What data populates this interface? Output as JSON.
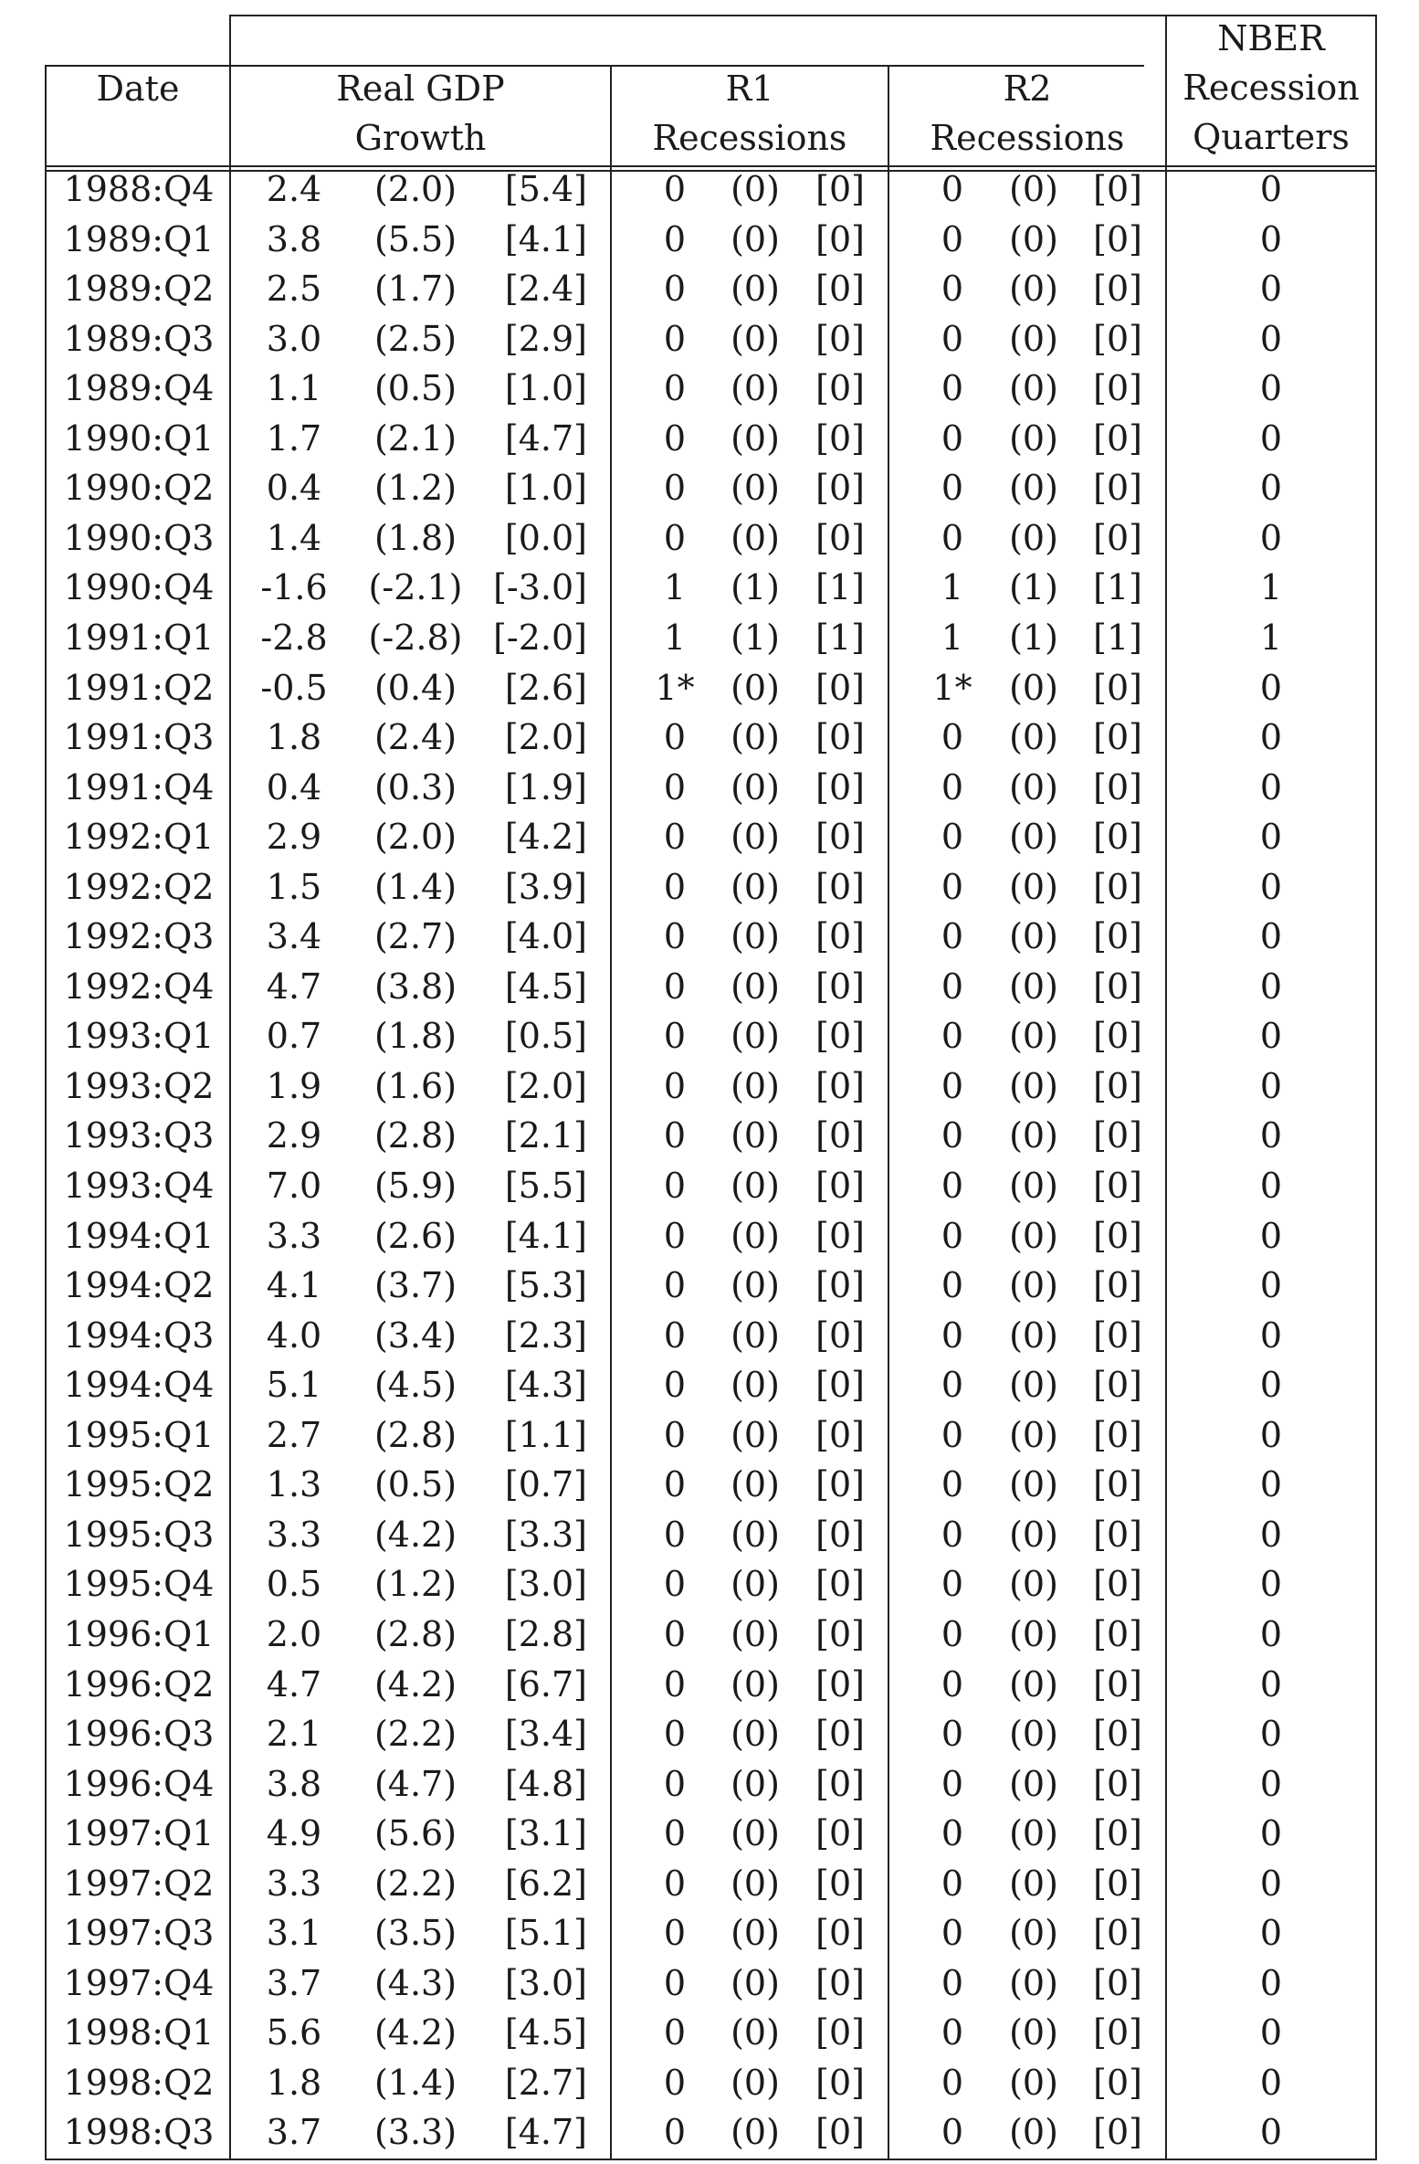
{
  "headers": {
    "date": "Date",
    "gdp": [
      "Real GDP",
      "Growth"
    ],
    "r1": [
      "R1",
      "Recessions"
    ],
    "r2": [
      "R2",
      "Recessions"
    ],
    "nber": [
      "NBER",
      "Recession",
      "Quarters"
    ]
  },
  "rows": [
    [
      "1988:Q4",
      "2.4",
      "(2.0)",
      "[5.4]",
      "0",
      "(0)",
      "[0]",
      "0",
      "(0)",
      "[0]",
      "0"
    ],
    [
      "1989:Q1",
      "3.8",
      "(5.5)",
      "[4.1]",
      "0",
      "(0)",
      "[0]",
      "0",
      "(0)",
      "[0]",
      "0"
    ],
    [
      "1989:Q2",
      "2.5",
      "(1.7)",
      "[2.4]",
      "0",
      "(0)",
      "[0]",
      "0",
      "(0)",
      "[0]",
      "0"
    ],
    [
      "1989:Q3",
      "3.0",
      "(2.5)",
      "[2.9]",
      "0",
      "(0)",
      "[0]",
      "0",
      "(0)",
      "[0]",
      "0"
    ],
    [
      "1989:Q4",
      "1.1",
      "(0.5)",
      "[1.0]",
      "0",
      "(0)",
      "[0]",
      "0",
      "(0)",
      "[0]",
      "0"
    ],
    [
      "1990:Q1",
      "1.7",
      "(2.1)",
      "[4.7]",
      "0",
      "(0)",
      "[0]",
      "0",
      "(0)",
      "[0]",
      "0"
    ],
    [
      "1990:Q2",
      "0.4",
      "(1.2)",
      "[1.0]",
      "0",
      "(0)",
      "[0]",
      "0",
      "(0)",
      "[0]",
      "0"
    ],
    [
      "1990:Q3",
      "1.4",
      "(1.8)",
      "[0.0]",
      "0",
      "(0)",
      "[0]",
      "0",
      "(0)",
      "[0]",
      "0"
    ],
    [
      "1990:Q4",
      "-1.6",
      "(-2.1)",
      "[-3.0]",
      "1",
      "(1)",
      "[1]",
      "1",
      "(1)",
      "[1]",
      "1"
    ],
    [
      "1991:Q1",
      "-2.8",
      "(-2.8)",
      "[-2.0]",
      "1",
      "(1)",
      "[1]",
      "1",
      "(1)",
      "[1]",
      "1"
    ],
    [
      "1991:Q2",
      "-0.5",
      "(0.4)",
      "[2.6]",
      "1*",
      "(0)",
      "[0]",
      "1*",
      "(0)",
      "[0]",
      "0"
    ],
    [
      "1991:Q3",
      "1.8",
      "(2.4)",
      "[2.0]",
      "0",
      "(0)",
      "[0]",
      "0",
      "(0)",
      "[0]",
      "0"
    ],
    [
      "1991:Q4",
      "0.4",
      "(0.3)",
      "[1.9]",
      "0",
      "(0)",
      "[0]",
      "0",
      "(0)",
      "[0]",
      "0"
    ],
    [
      "1992:Q1",
      "2.9",
      "(2.0)",
      "[4.2]",
      "0",
      "(0)",
      "[0]",
      "0",
      "(0)",
      "[0]",
      "0"
    ],
    [
      "1992:Q2",
      "1.5",
      "(1.4)",
      "[3.9]",
      "0",
      "(0)",
      "[0]",
      "0",
      "(0)",
      "[0]",
      "0"
    ],
    [
      "1992:Q3",
      "3.4",
      "(2.7)",
      "[4.0]",
      "0",
      "(0)",
      "[0]",
      "0",
      "(0)",
      "[0]",
      "0"
    ],
    [
      "1992:Q4",
      "4.7",
      "(3.8)",
      "[4.5]",
      "0",
      "(0)",
      "[0]",
      "0",
      "(0)",
      "[0]",
      "0"
    ],
    [
      "1993:Q1",
      "0.7",
      "(1.8)",
      "[0.5]",
      "0",
      "(0)",
      "[0]",
      "0",
      "(0)",
      "[0]",
      "0"
    ],
    [
      "1993:Q2",
      "1.9",
      "(1.6)",
      "[2.0]",
      "0",
      "(0)",
      "[0]",
      "0",
      "(0)",
      "[0]",
      "0"
    ],
    [
      "1993:Q3",
      "2.9",
      "(2.8)",
      "[2.1]",
      "0",
      "(0)",
      "[0]",
      "0",
      "(0)",
      "[0]",
      "0"
    ],
    [
      "1993:Q4",
      "7.0",
      "(5.9)",
      "[5.5]",
      "0",
      "(0)",
      "[0]",
      "0",
      "(0)",
      "[0]",
      "0"
    ],
    [
      "1994:Q1",
      "3.3",
      "(2.6)",
      "[4.1]",
      "0",
      "(0)",
      "[0]",
      "0",
      "(0)",
      "[0]",
      "0"
    ],
    [
      "1994:Q2",
      "4.1",
      "(3.7)",
      "[5.3]",
      "0",
      "(0)",
      "[0]",
      "0",
      "(0)",
      "[0]",
      "0"
    ],
    [
      "1994:Q3",
      "4.0",
      "(3.4)",
      "[2.3]",
      "0",
      "(0)",
      "[0]",
      "0",
      "(0)",
      "[0]",
      "0"
    ],
    [
      "1994:Q4",
      "5.1",
      "(4.5)",
      "[4.3]",
      "0",
      "(0)",
      "[0]",
      "0",
      "(0)",
      "[0]",
      "0"
    ],
    [
      "1995:Q1",
      "2.7",
      "(2.8)",
      "[1.1]",
      "0",
      "(0)",
      "[0]",
      "0",
      "(0)",
      "[0]",
      "0"
    ],
    [
      "1995:Q2",
      "1.3",
      "(0.5)",
      "[0.7]",
      "0",
      "(0)",
      "[0]",
      "0",
      "(0)",
      "[0]",
      "0"
    ],
    [
      "1995:Q3",
      "3.3",
      "(4.2)",
      "[3.3]",
      "0",
      "(0)",
      "[0]",
      "0",
      "(0)",
      "[0]",
      "0"
    ],
    [
      "1995:Q4",
      "0.5",
      "(1.2)",
      "[3.0]",
      "0",
      "(0)",
      "[0]",
      "0",
      "(0)",
      "[0]",
      "0"
    ],
    [
      "1996:Q1",
      "2.0",
      "(2.8)",
      "[2.8]",
      "0",
      "(0)",
      "[0]",
      "0",
      "(0)",
      "[0]",
      "0"
    ],
    [
      "1996:Q2",
      "4.7",
      "(4.2)",
      "[6.7]",
      "0",
      "(0)",
      "[0]",
      "0",
      "(0)",
      "[0]",
      "0"
    ],
    [
      "1996:Q3",
      "2.1",
      "(2.2)",
      "[3.4]",
      "0",
      "(0)",
      "[0]",
      "0",
      "(0)",
      "[0]",
      "0"
    ],
    [
      "1996:Q4",
      "3.8",
      "(4.7)",
      "[4.8]",
      "0",
      "(0)",
      "[0]",
      "0",
      "(0)",
      "[0]",
      "0"
    ],
    [
      "1997:Q1",
      "4.9",
      "(5.6)",
      "[3.1]",
      "0",
      "(0)",
      "[0]",
      "0",
      "(0)",
      "[0]",
      "0"
    ],
    [
      "1997:Q2",
      "3.3",
      "(2.2)",
      "[6.2]",
      "0",
      "(0)",
      "[0]",
      "0",
      "(0)",
      "[0]",
      "0"
    ],
    [
      "1997:Q3",
      "3.1",
      "(3.5)",
      "[5.1]",
      "0",
      "(0)",
      "[0]",
      "0",
      "(0)",
      "[0]",
      "0"
    ],
    [
      "1997:Q4",
      "3.7",
      "(4.3)",
      "[3.0]",
      "0",
      "(0)",
      "[0]",
      "0",
      "(0)",
      "[0]",
      "0"
    ],
    [
      "1998:Q1",
      "5.6",
      "(4.2)",
      "[4.5]",
      "0",
      "(0)",
      "[0]",
      "0",
      "(0)",
      "[0]",
      "0"
    ],
    [
      "1998:Q2",
      "1.8",
      "(1.4)",
      "[2.7]",
      "0",
      "(0)",
      "[0]",
      "0",
      "(0)",
      "[0]",
      "0"
    ],
    [
      "1998:Q3",
      "3.7",
      "(3.3)",
      "[4.7]",
      "0",
      "(0)",
      "[0]",
      "0",
      "(0)",
      "[0]",
      "0"
    ]
  ]
}
